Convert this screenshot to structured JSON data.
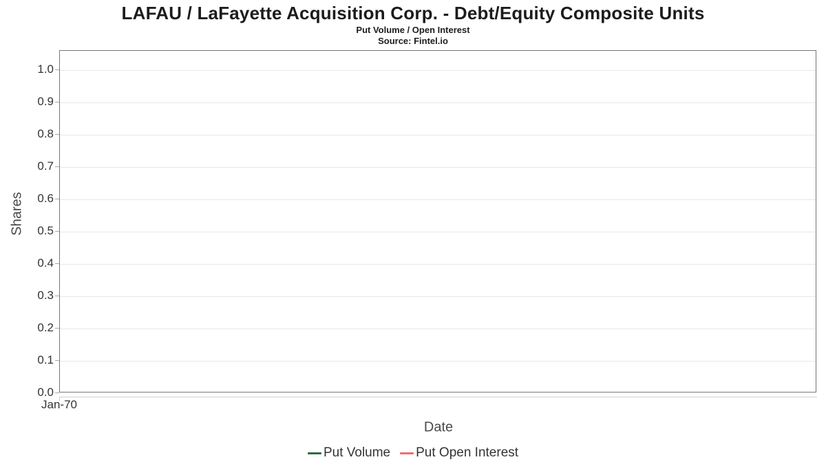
{
  "header": {
    "title": "LAFAU / LaFayette Acquisition Corp. - Debt/Equity Composite Units",
    "subtitle": "Put Volume / Open Interest",
    "source": "Source: Fintel.io"
  },
  "chart_data": {
    "type": "line",
    "title": "LAFAU / LaFayette Acquisition Corp. - Debt/Equity Composite Units",
    "subtitle": "Put Volume / Open Interest",
    "source": "Source: Fintel.io",
    "xlabel": "Date",
    "ylabel": "Shares",
    "x_tick_labels": [
      "Jan-70"
    ],
    "y_ticks": [
      0.0,
      0.1,
      0.2,
      0.3,
      0.4,
      0.5,
      0.6,
      0.7,
      0.8,
      0.9,
      1.0
    ],
    "ylim": [
      0.0,
      1.06
    ],
    "grid": "horizontal",
    "legend_position": "bottom",
    "series": [
      {
        "name": "Put Volume",
        "color": "#2e6b45",
        "x": [],
        "values": []
      },
      {
        "name": "Put Open Interest",
        "color": "#f96a6a",
        "x": [],
        "values": []
      }
    ]
  },
  "colors": {
    "plot_border": "#767676",
    "gridline": "#e7e7e7",
    "axis_line": "#cfcfcf",
    "tick_mark": "#a6a6a6",
    "tick_text": "#333333",
    "axis_title_text": "#4a4a4a",
    "title_text": "#1c1c1c",
    "put_volume": "#2e6b45",
    "put_open_interest": "#f96a6a"
  }
}
